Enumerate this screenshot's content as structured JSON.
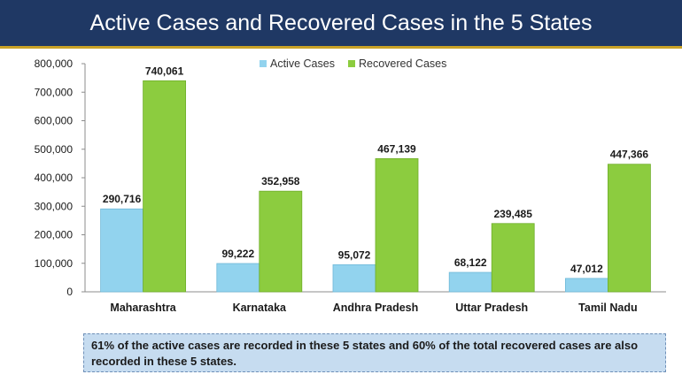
{
  "header": {
    "title": "Active Cases and Recovered Cases in the 5 States"
  },
  "colors": {
    "header_bg": "#1f3864",
    "header_accent": "#c9a227",
    "active": "#92d3ee",
    "recovered": "#8ccc3f",
    "note_bg": "#c6dcf0"
  },
  "chart_data": {
    "type": "bar",
    "title": "Active Cases and Recovered Cases in the 5 States",
    "xlabel": "",
    "ylabel": "",
    "categories": [
      "Maharashtra",
      "Karnataka",
      "Andhra Pradesh",
      "Uttar Pradesh",
      "Tamil Nadu"
    ],
    "series": [
      {
        "name": "Active Cases",
        "values": [
          290716,
          99222,
          95072,
          68122,
          47012
        ],
        "labels": [
          "290,716",
          "99,222",
          "95,072",
          "68,122",
          "47,012"
        ]
      },
      {
        "name": "Recovered Cases",
        "values": [
          740061,
          352958,
          467139,
          239485,
          447366
        ],
        "labels": [
          "740,061",
          "352,958",
          "467,139",
          "239,485",
          "447,366"
        ]
      }
    ],
    "ylim": [
      0,
      800000
    ],
    "yticks": [
      0,
      100000,
      200000,
      300000,
      400000,
      500000,
      600000,
      700000,
      800000
    ],
    "ytick_labels": [
      "0",
      "100,000",
      "200,000",
      "300,000",
      "400,000",
      "500,000",
      "600,000",
      "700,000",
      "800,000"
    ],
    "grid": false,
    "legend_position": "top-center"
  },
  "note": {
    "text": "61% of the active cases are recorded in these 5 states and 60% of the total recovered cases are also recorded in these 5 states."
  }
}
